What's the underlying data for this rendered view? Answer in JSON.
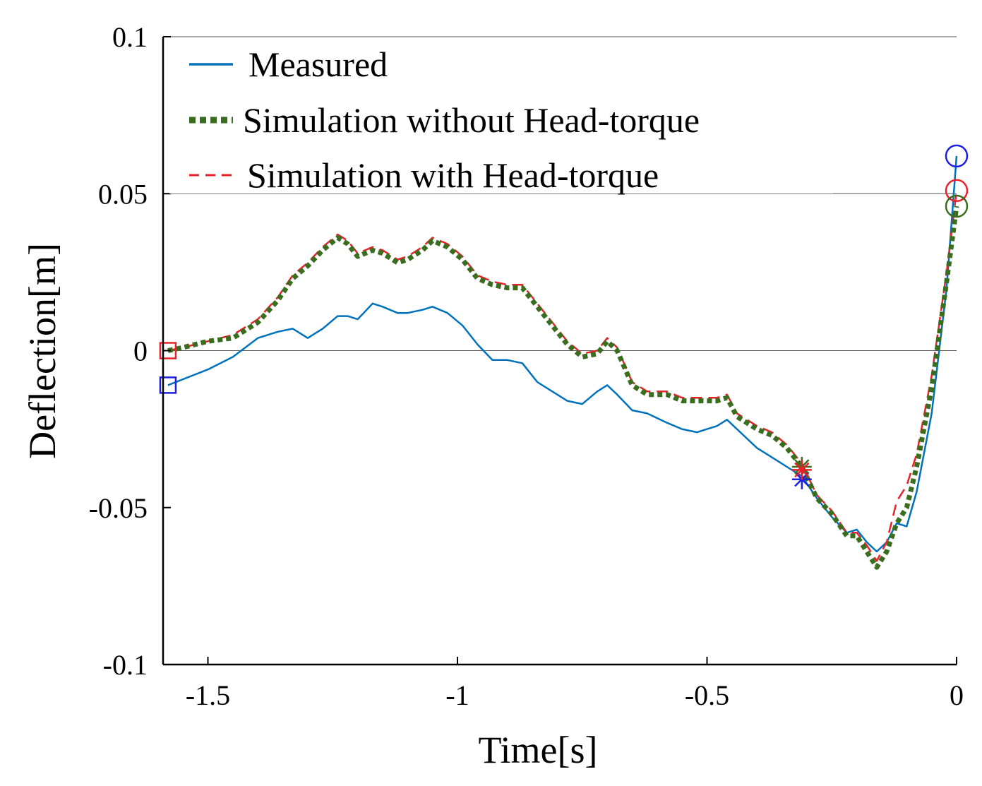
{
  "chart_data": {
    "type": "line",
    "title": "",
    "xlabel": "Time[s]",
    "ylabel": "Deflection[m]",
    "xlim": [
      -1.6,
      0
    ],
    "ylim": [
      -0.1,
      0.1
    ],
    "xticks": [
      -1.5,
      -1,
      -0.5,
      0
    ],
    "xtick_labels": [
      "-1.5",
      "-1",
      "-0.5",
      "0"
    ],
    "yticks": [
      -0.1,
      -0.05,
      0,
      0.05,
      0.1
    ],
    "ytick_labels": [
      "-0.1",
      "-0.05",
      "0",
      "0.05",
      "0.1"
    ],
    "grid": false,
    "reference_lines": [
      0,
      0.05,
      0.1
    ],
    "legend_position": "top-left",
    "series": [
      {
        "name": "Measured",
        "color": "#0072BD",
        "style": "solid",
        "x": [
          -1.58,
          -1.5,
          -1.45,
          -1.4,
          -1.36,
          -1.33,
          -1.3,
          -1.27,
          -1.24,
          -1.22,
          -1.2,
          -1.17,
          -1.15,
          -1.12,
          -1.1,
          -1.07,
          -1.05,
          -1.02,
          -0.99,
          -0.96,
          -0.93,
          -0.9,
          -0.87,
          -0.84,
          -0.81,
          -0.78,
          -0.75,
          -0.72,
          -0.7,
          -0.68,
          -0.65,
          -0.62,
          -0.58,
          -0.55,
          -0.52,
          -0.5,
          -0.48,
          -0.46,
          -0.44,
          -0.4,
          -0.37,
          -0.34,
          -0.31,
          -0.28,
          -0.25,
          -0.22,
          -0.2,
          -0.18,
          -0.16,
          -0.14,
          -0.12,
          -0.1,
          -0.08,
          -0.05,
          -0.02,
          0
        ],
        "y": [
          -0.011,
          -0.006,
          -0.002,
          0.004,
          0.006,
          0.007,
          0.004,
          0.007,
          0.011,
          0.011,
          0.01,
          0.015,
          0.014,
          0.012,
          0.012,
          0.013,
          0.014,
          0.012,
          0.008,
          0.002,
          -0.003,
          -0.003,
          -0.004,
          -0.01,
          -0.013,
          -0.016,
          -0.017,
          -0.013,
          -0.011,
          -0.014,
          -0.019,
          -0.02,
          -0.023,
          -0.025,
          -0.026,
          -0.025,
          -0.024,
          -0.022,
          -0.025,
          -0.031,
          -0.034,
          -0.037,
          -0.04,
          -0.047,
          -0.053,
          -0.058,
          -0.057,
          -0.061,
          -0.064,
          -0.061,
          -0.055,
          -0.056,
          -0.045,
          -0.02,
          0.02,
          0.062
        ]
      },
      {
        "name": "Simulation without Head-torque",
        "color": "#3A6E1F",
        "style": "dotted",
        "x": [
          -1.58,
          -1.55,
          -1.5,
          -1.45,
          -1.4,
          -1.36,
          -1.33,
          -1.3,
          -1.27,
          -1.24,
          -1.22,
          -1.2,
          -1.17,
          -1.15,
          -1.12,
          -1.1,
          -1.07,
          -1.05,
          -1.02,
          -0.99,
          -0.96,
          -0.93,
          -0.9,
          -0.87,
          -0.84,
          -0.81,
          -0.78,
          -0.75,
          -0.72,
          -0.7,
          -0.68,
          -0.65,
          -0.62,
          -0.58,
          -0.55,
          -0.52,
          -0.5,
          -0.48,
          -0.46,
          -0.44,
          -0.4,
          -0.37,
          -0.34,
          -0.31,
          -0.28,
          -0.25,
          -0.22,
          -0.2,
          -0.18,
          -0.16,
          -0.14,
          -0.12,
          -0.1,
          -0.08,
          -0.05,
          -0.02,
          0
        ],
        "y": [
          0,
          0.001,
          0.003,
          0.004,
          0.009,
          0.016,
          0.023,
          0.027,
          0.032,
          0.036,
          0.034,
          0.03,
          0.032,
          0.031,
          0.028,
          0.029,
          0.032,
          0.035,
          0.033,
          0.029,
          0.023,
          0.021,
          0.02,
          0.02,
          0.014,
          0.008,
          0.002,
          -0.002,
          -0.001,
          0.003,
          0.0,
          -0.011,
          -0.014,
          -0.014,
          -0.016,
          -0.016,
          -0.016,
          -0.016,
          -0.015,
          -0.021,
          -0.025,
          -0.027,
          -0.031,
          -0.037,
          -0.047,
          -0.052,
          -0.059,
          -0.059,
          -0.064,
          -0.069,
          -0.064,
          -0.055,
          -0.05,
          -0.037,
          -0.012,
          0.022,
          0.046
        ]
      },
      {
        "name": "Simulation with Head-torque",
        "color": "#E8222A",
        "style": "dashed",
        "x": [
          -1.58,
          -1.55,
          -1.5,
          -1.45,
          -1.4,
          -1.36,
          -1.33,
          -1.3,
          -1.27,
          -1.24,
          -1.22,
          -1.2,
          -1.17,
          -1.15,
          -1.12,
          -1.1,
          -1.07,
          -1.05,
          -1.02,
          -0.99,
          -0.96,
          -0.93,
          -0.9,
          -0.87,
          -0.84,
          -0.81,
          -0.78,
          -0.75,
          -0.72,
          -0.7,
          -0.68,
          -0.65,
          -0.62,
          -0.58,
          -0.55,
          -0.52,
          -0.5,
          -0.48,
          -0.46,
          -0.44,
          -0.4,
          -0.37,
          -0.34,
          -0.31,
          -0.28,
          -0.25,
          -0.22,
          -0.2,
          -0.18,
          -0.16,
          -0.14,
          -0.12,
          -0.1,
          -0.08,
          -0.05,
          -0.02,
          0
        ],
        "y": [
          0,
          0.001,
          0.003,
          0.005,
          0.01,
          0.017,
          0.024,
          0.028,
          0.033,
          0.037,
          0.035,
          0.031,
          0.033,
          0.032,
          0.029,
          0.03,
          0.033,
          0.036,
          0.034,
          0.03,
          0.024,
          0.022,
          0.021,
          0.021,
          0.015,
          0.009,
          0.003,
          -0.001,
          0.0,
          0.004,
          0.001,
          -0.01,
          -0.013,
          -0.013,
          -0.015,
          -0.015,
          -0.015,
          -0.015,
          -0.014,
          -0.02,
          -0.024,
          -0.026,
          -0.03,
          -0.036,
          -0.046,
          -0.051,
          -0.058,
          -0.058,
          -0.062,
          -0.067,
          -0.061,
          -0.048,
          -0.043,
          -0.033,
          -0.008,
          0.025,
          0.051
        ]
      }
    ],
    "markers": [
      {
        "series": "Measured",
        "shape": "square",
        "x": -1.58,
        "y": -0.011,
        "color": "#1F1FE0"
      },
      {
        "series": "Simulation with Head-torque",
        "shape": "square",
        "x": -1.58,
        "y": 0.0,
        "color": "#E8222A"
      },
      {
        "series": "Measured",
        "shape": "asterisk",
        "x": -0.31,
        "y": -0.041,
        "color": "#1F1FE0"
      },
      {
        "series": "Simulation without Head-torque",
        "shape": "asterisk",
        "x": -0.31,
        "y": -0.037,
        "color": "#3A6E1F"
      },
      {
        "series": "Simulation with Head-torque",
        "shape": "asterisk",
        "x": -0.31,
        "y": -0.038,
        "color": "#E8222A"
      },
      {
        "series": "Measured",
        "shape": "circle",
        "x": 0,
        "y": 0.062,
        "color": "#1F1FE0"
      },
      {
        "series": "Simulation with Head-torque",
        "shape": "circle",
        "x": 0,
        "y": 0.051,
        "color": "#E8222A"
      },
      {
        "series": "Simulation without Head-torque",
        "shape": "circle",
        "x": 0,
        "y": 0.046,
        "color": "#3A6E1F"
      }
    ]
  }
}
